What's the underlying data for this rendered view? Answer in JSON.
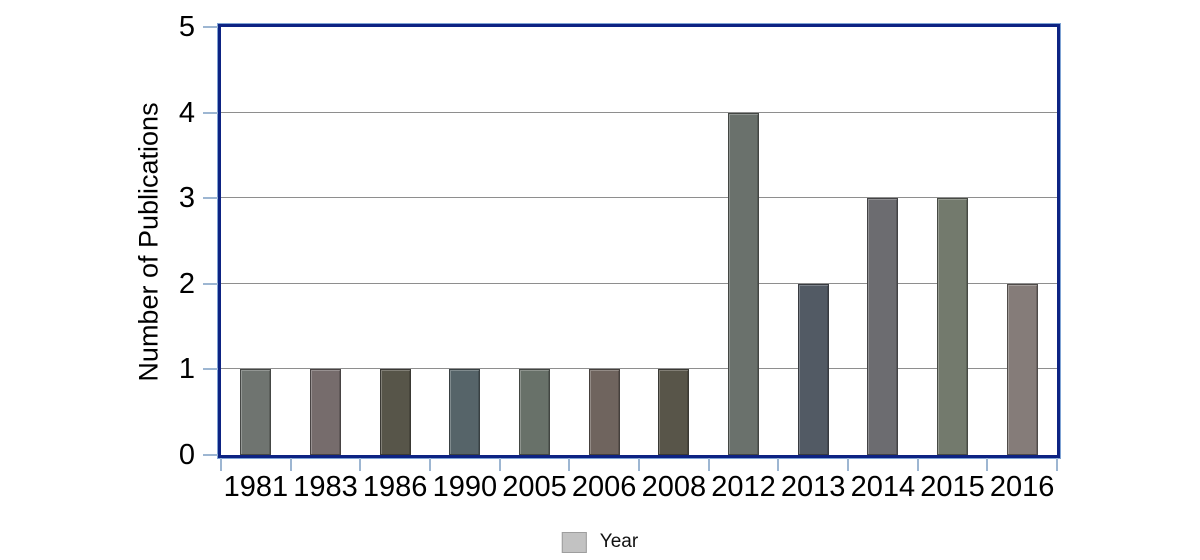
{
  "colors": {
    "frame": "#0d2383",
    "frame_highlight": "#7fa3d4",
    "gridline": "#8e8e8e",
    "tick": "#9db6d2",
    "legend_swatch": "#c2c2c2",
    "legend_swatch_border": "#9e9e9e",
    "text": "#000000",
    "background": "#ffffff"
  },
  "chart_data": {
    "type": "bar",
    "title": "",
    "categories": [
      "1981",
      "1983",
      "1986",
      "1990",
      "2005",
      "2006",
      "2008",
      "2012",
      "2013",
      "2014",
      "2015",
      "2016"
    ],
    "values": [
      1,
      1,
      1,
      1,
      1,
      1,
      1,
      4,
      2,
      3,
      3,
      2
    ],
    "bar_colors": [
      "#6f7470",
      "#766c6c",
      "#575549",
      "#566469",
      "#687169",
      "#6f645e",
      "#585549",
      "#6a716c",
      "#525a64",
      "#6c6c70",
      "#737a6d",
      "#857c79"
    ],
    "xlabel": "",
    "ylabel": "Number of Publications",
    "ylim": [
      0,
      5
    ],
    "yticks": [
      0,
      1,
      2,
      3,
      4,
      5
    ],
    "grid": true,
    "legend": {
      "label": "Year",
      "position": "bottom"
    }
  }
}
